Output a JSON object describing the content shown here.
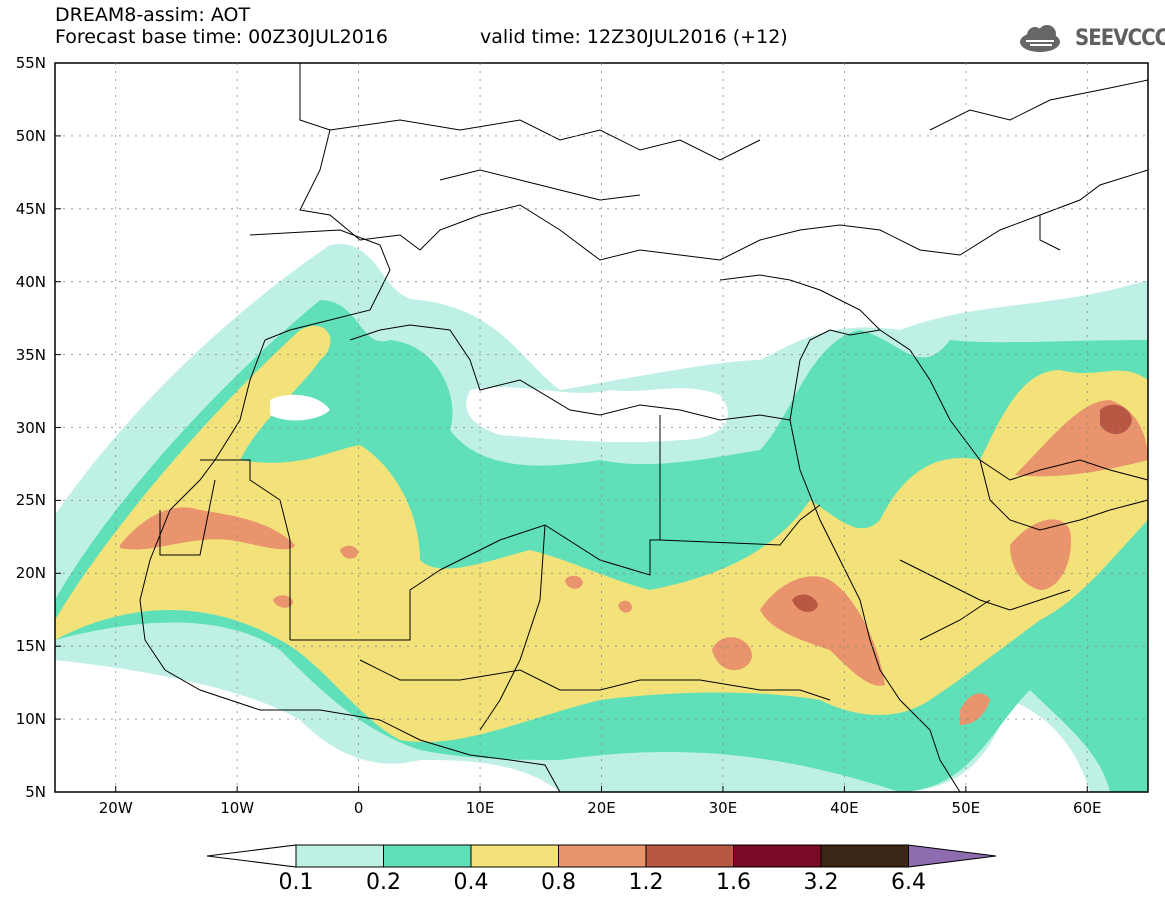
{
  "header": {
    "title": "DREAM8-assim: AOT",
    "base_time": "Forecast base time: 00Z30JUL2016",
    "valid_time": "valid time: 12Z30JUL2016 (+12)",
    "logo_text": "SEEVCCC"
  },
  "map": {
    "extent": {
      "lon_min": -25,
      "lon_max": 65,
      "lat_min": 5,
      "lat_max": 55
    },
    "lat_labels": [
      "55N",
      "50N",
      "45N",
      "40N",
      "35N",
      "30N",
      "25N",
      "20N",
      "15N",
      "10N",
      "5N"
    ],
    "lon_labels": [
      "20W",
      "10W",
      "0",
      "10E",
      "20E",
      "30E",
      "40E",
      "50E",
      "60E"
    ]
  },
  "colorbar": {
    "levels": [
      "0.1",
      "0.2",
      "0.4",
      "0.8",
      "1.2",
      "1.6",
      "3.2",
      "6.4"
    ],
    "colors": [
      "#bff0e6",
      "#5fe0b8",
      "#f3e27a",
      "#e9946c",
      "#b85844",
      "#7a0a28",
      "#3b2514",
      "#8f6bb0"
    ]
  }
}
